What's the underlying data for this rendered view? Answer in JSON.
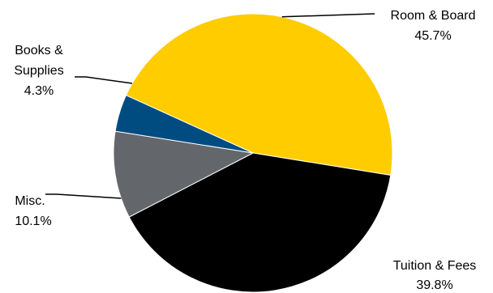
{
  "chart_data": {
    "type": "pie",
    "title": "",
    "slices": [
      {
        "label_lines": [
          "Room & Board"
        ],
        "label": "Room & Board",
        "value": 45.7,
        "value_label": "45.7%",
        "color": "#FFCC00"
      },
      {
        "label_lines": [
          "Tuition & Fees"
        ],
        "label": "Tuition & Fees",
        "value": 39.8,
        "value_label": "39.8%",
        "color": "#000000"
      },
      {
        "label_lines": [
          "Misc."
        ],
        "label": "Misc.",
        "value": 10.1,
        "value_label": "10.1%",
        "color": "#63666A"
      },
      {
        "label_lines": [
          "Books &",
          "Supplies"
        ],
        "label": "Books & Supplies",
        "value": 4.3,
        "value_label": "4.3%",
        "color": "#004C80"
      }
    ],
    "legend": "none",
    "start_angle_deg": 155.5,
    "direction": "clockwise"
  }
}
